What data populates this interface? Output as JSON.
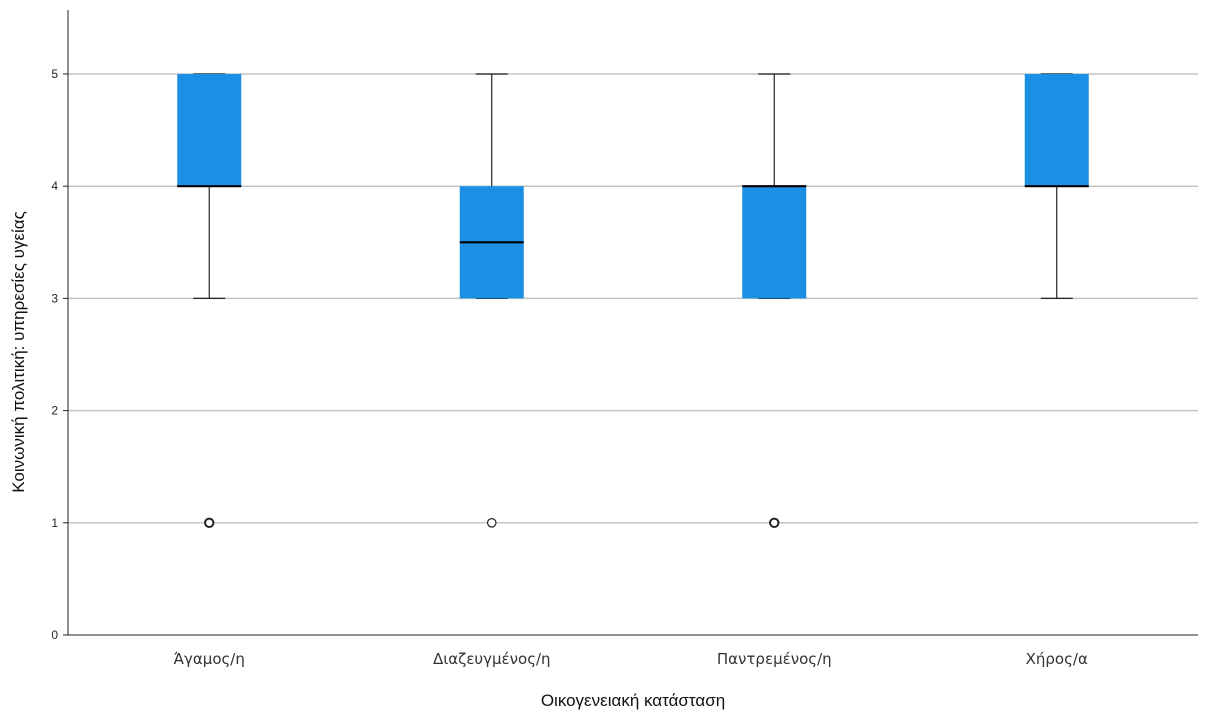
{
  "chart_data": {
    "type": "box",
    "xlabel": "Οικογενειακή κατάσταση",
    "ylabel": "Κοινωνική πολιτική: υπηρεσίες υγείας",
    "categories": [
      "Άγαμος/η",
      "Διαζευγμένος/η",
      "Παντρεμένος/η",
      "Χήρος/α"
    ],
    "ylim": [
      0,
      5.5
    ],
    "yticks": [
      0,
      1,
      2,
      3,
      4,
      5
    ],
    "grid": true,
    "box_color": "#1a8fe3",
    "boxes": [
      {
        "min": 3,
        "q1": 4,
        "median": 4,
        "q3": 5,
        "max": 5,
        "outliers": [
          1
        ]
      },
      {
        "min": 3,
        "q1": 3,
        "median": 3.5,
        "q3": 4,
        "max": 5,
        "outliers": [
          1
        ]
      },
      {
        "min": 3,
        "q1": 3,
        "median": 4,
        "q3": 4,
        "max": 5,
        "outliers": [
          1
        ]
      },
      {
        "min": 3,
        "q1": 4,
        "median": 4,
        "q3": 5,
        "max": 5,
        "outliers": []
      }
    ]
  }
}
